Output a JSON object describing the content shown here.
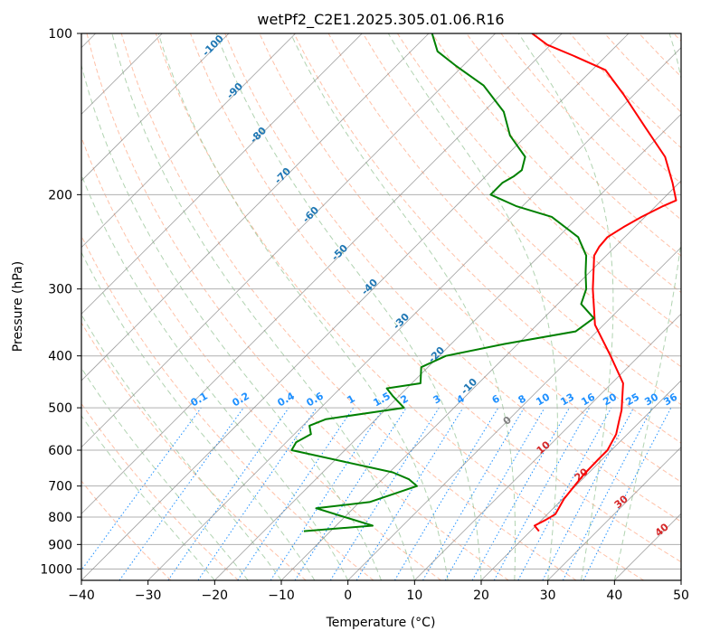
{
  "chart_data": {
    "type": "line",
    "title": "wetPf2_C2E1.2025.305.01.06.R16",
    "xlabel": "Temperature (°C)",
    "ylabel": "Pressure (hPa)",
    "xlim": [
      -40,
      50
    ],
    "ylim": [
      1050,
      100
    ],
    "y_scale": "log",
    "x_ticks": [
      "−40",
      "−30",
      "−20",
      "−10",
      "0",
      "10",
      "20",
      "30",
      "40",
      "50"
    ],
    "y_ticks": [
      "100",
      "200",
      "300",
      "400",
      "500",
      "600",
      "700",
      "800",
      "900",
      "1000"
    ],
    "grid": true,
    "skew": true,
    "series": [
      {
        "color": "#ff0000",
        "points": [
          [
            21.3,
            850
          ],
          [
            19.8,
            830
          ],
          [
            20.6,
            810
          ],
          [
            21.2,
            790
          ],
          [
            20.2,
            740
          ],
          [
            19.8,
            700
          ],
          [
            19.5,
            665
          ],
          [
            19.4,
            625
          ],
          [
            19.4,
            600
          ],
          [
            18.3,
            560
          ],
          [
            16.8,
            530
          ],
          [
            15.5,
            505
          ],
          [
            11.7,
            450
          ],
          [
            5.7,
            400
          ],
          [
            -1.3,
            350
          ],
          [
            -7.0,
            300
          ],
          [
            -11.8,
            260
          ],
          [
            -12.4,
            250
          ],
          [
            -12.6,
            240
          ],
          [
            -11.7,
            230
          ],
          [
            -10.5,
            220
          ],
          [
            -8.9,
            210
          ],
          [
            -7.8,
            205
          ],
          [
            -11.0,
            190
          ],
          [
            -16.0,
            170
          ],
          [
            -23.3,
            150
          ],
          [
            -31.6,
            130
          ],
          [
            -38.0,
            117
          ],
          [
            -45.0,
            110
          ],
          [
            -50.5,
            105
          ],
          [
            -54.5,
            100
          ]
        ]
      },
      {
        "color": "#008000",
        "points": [
          [
            -14.0,
            850
          ],
          [
            -4.5,
            830
          ],
          [
            -10.0,
            800
          ],
          [
            -15.6,
            770
          ],
          [
            -8.5,
            750
          ],
          [
            -3.8,
            700
          ],
          [
            -6.0,
            680
          ],
          [
            -9.5,
            660
          ],
          [
            -28.0,
            600
          ],
          [
            -28.5,
            580
          ],
          [
            -27.5,
            560
          ],
          [
            -29.0,
            540
          ],
          [
            -27.5,
            525
          ],
          [
            -17.5,
            500
          ],
          [
            -21.0,
            475
          ],
          [
            -23.0,
            460
          ],
          [
            -18.7,
            450
          ],
          [
            -21.0,
            420
          ],
          [
            -19.0,
            400
          ],
          [
            -12.0,
            380
          ],
          [
            -3.2,
            360
          ],
          [
            -2.5,
            340
          ],
          [
            -6.5,
            320
          ],
          [
            -8.0,
            300
          ],
          [
            -10.5,
            280
          ],
          [
            -13.0,
            260
          ],
          [
            -17.0,
            240
          ],
          [
            -24.0,
            220
          ],
          [
            -31.0,
            210
          ],
          [
            -36.5,
            200
          ],
          [
            -36.5,
            190
          ],
          [
            -35.8,
            185
          ],
          [
            -35.5,
            180
          ],
          [
            -37.0,
            170
          ],
          [
            -42.5,
            155
          ],
          [
            -47.0,
            140
          ],
          [
            -54.0,
            125
          ],
          [
            -61.0,
            115
          ],
          [
            -66.0,
            108
          ],
          [
            -69.5,
            100
          ]
        ]
      }
    ],
    "isotherm_labels": [
      "-100",
      "-90",
      "-80",
      "-70",
      "-60",
      "-50",
      "-40",
      "-30",
      "-20",
      "-10"
    ],
    "mixing_ratio_labels": [
      "0.1",
      "0.2",
      "0.4",
      "0.6",
      "1",
      "1.5",
      "2",
      "3",
      "4",
      "6",
      "8",
      "10",
      "13",
      "16",
      "20",
      "25",
      "30",
      "36"
    ],
    "red_dashed_labels": [
      "10",
      "20",
      "30",
      "40"
    ],
    "gray_label": "0",
    "colors": {
      "temperature": "#ff0000",
      "dewpoint": "#008000",
      "isotherm": "#808080",
      "dry_adiabat": "#ffa07a",
      "moist_adiabat": "#90c090",
      "mixing_ratio": "#1e90ff",
      "isotherm_label": "#1f77b4",
      "red_label": "#d62728"
    }
  }
}
